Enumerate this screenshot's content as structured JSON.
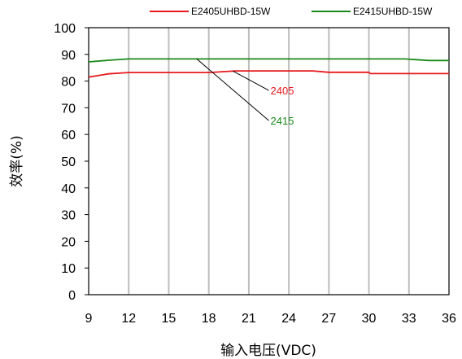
{
  "chart_data": {
    "type": "line",
    "title": "",
    "xlabel": "输入电压(VDC)",
    "ylabel": "效率(%)",
    "xlim": [
      9,
      36
    ],
    "ylim": [
      0,
      100
    ],
    "xticks": [
      "9",
      "12",
      "15",
      "18",
      "21",
      "24",
      "27",
      "30",
      "33",
      "36"
    ],
    "yticks": [
      "0",
      "10",
      "20",
      "30",
      "40",
      "50",
      "60",
      "70",
      "80",
      "90",
      "100"
    ],
    "grid": true,
    "legend_position": "top",
    "series": [
      {
        "name": "E2405UHBD-15W",
        "color": "#e8191d",
        "x": [
          9,
          10.5,
          12,
          15,
          18,
          20,
          22,
          24,
          25.8,
          27,
          30,
          30.1,
          33,
          36
        ],
        "y": [
          81.5,
          82.7,
          83.2,
          83.2,
          83.2,
          83.8,
          83.8,
          83.8,
          83.8,
          83.3,
          83.3,
          82.8,
          82.8,
          82.8
        ]
      },
      {
        "name": "E2415UHBD-15W",
        "color": "#1a8a1a",
        "x": [
          9,
          10.5,
          12,
          15,
          18,
          21,
          24,
          27,
          30,
          32.7,
          34.5,
          36
        ],
        "y": [
          87.2,
          87.8,
          88.3,
          88.3,
          88.3,
          88.3,
          88.3,
          88.3,
          88.3,
          88.3,
          87.7,
          87.7
        ]
      }
    ],
    "annotations": [
      {
        "text": "2405",
        "color": "#e8191d",
        "x_from": 19.8,
        "y_from": 83.8,
        "x_to": 22.5,
        "y_to": 76.5
      },
      {
        "text": "2415",
        "color": "#1a8a1a",
        "x_from": 17.1,
        "y_from": 88.3,
        "x_to": 22.5,
        "y_to": 65.2
      }
    ]
  }
}
